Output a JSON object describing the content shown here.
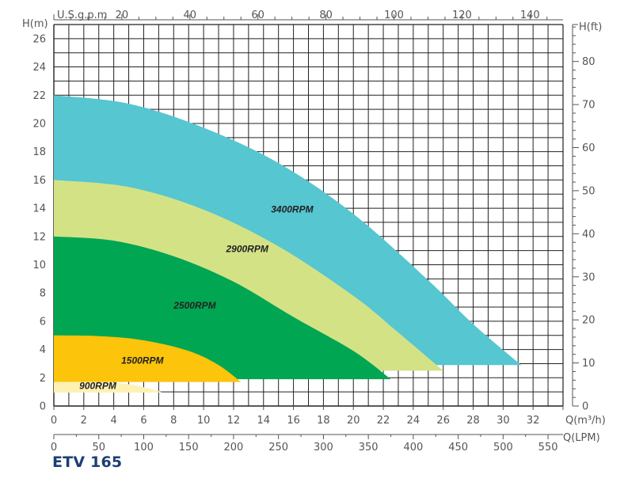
{
  "title": "ETV 165",
  "colors": {
    "grid": "#222222",
    "axis_text": "#555555",
    "title": "#1d3f73"
  },
  "chart_data": {
    "type": "area",
    "title": "ETV 165",
    "axes": {
      "left": {
        "label": "H(m)",
        "range": [
          0,
          27
        ],
        "ticks": [
          0,
          2,
          4,
          6,
          8,
          10,
          12,
          14,
          16,
          18,
          20,
          22,
          24,
          26
        ]
      },
      "right": {
        "label": "H(ft)",
        "ticks": [
          0,
          10,
          20,
          30,
          40,
          50,
          60,
          70,
          80
        ]
      },
      "bottom": {
        "label": "Q(m³/h)",
        "range": [
          0,
          34
        ],
        "ticks": [
          0,
          2,
          4,
          6,
          8,
          10,
          12,
          14,
          16,
          18,
          20,
          22,
          24,
          26,
          28,
          30,
          32
        ]
      },
      "bottom2": {
        "label": "Q(LPM)",
        "ticks": [
          0,
          50,
          100,
          150,
          200,
          250,
          300,
          350,
          400,
          450,
          500,
          550
        ]
      },
      "top": {
        "label": "U.S.g.p.m",
        "ticks": [
          20,
          40,
          60,
          80,
          100,
          120,
          140
        ]
      }
    },
    "grid": true,
    "series": [
      {
        "name": "3400RPM",
        "color": "#56c6d1",
        "upper": [
          [
            0,
            22
          ],
          [
            5,
            21.4
          ],
          [
            10,
            19.7
          ],
          [
            15,
            17.2
          ],
          [
            20,
            13.6
          ],
          [
            25,
            8.9
          ],
          [
            28,
            5.8
          ],
          [
            31.2,
            2.9
          ]
        ],
        "lower": [
          [
            0,
            2.9
          ],
          [
            31.2,
            2.9
          ]
        ],
        "label_at": [
          14.5,
          13.7
        ]
      },
      {
        "name": "2900RPM",
        "color": "#d4e286",
        "upper": [
          [
            0,
            16
          ],
          [
            5,
            15.5
          ],
          [
            10,
            13.9
          ],
          [
            15,
            11.3
          ],
          [
            20,
            7.8
          ],
          [
            23,
            5.2
          ],
          [
            26,
            2.5
          ]
        ],
        "lower": [
          [
            0,
            2.5
          ],
          [
            26,
            2.5
          ]
        ],
        "label_at": [
          11.5,
          10.9
        ]
      },
      {
        "name": "2500RPM",
        "color": "#00a652",
        "upper": [
          [
            0,
            12
          ],
          [
            4,
            11.7
          ],
          [
            8,
            10.6
          ],
          [
            12,
            8.8
          ],
          [
            16,
            6.3
          ],
          [
            20,
            3.9
          ],
          [
            22.5,
            1.9
          ]
        ],
        "lower": [
          [
            0,
            1.9
          ],
          [
            22.5,
            1.9
          ]
        ],
        "label_at": [
          8,
          6.9
        ]
      },
      {
        "name": "1500RPM",
        "color": "#fcc40b",
        "upper": [
          [
            0,
            5
          ],
          [
            3,
            4.95
          ],
          [
            6,
            4.65
          ],
          [
            9,
            3.9
          ],
          [
            11,
            2.9
          ],
          [
            12.5,
            1.7
          ]
        ],
        "lower": [
          [
            0,
            1.7
          ],
          [
            12.5,
            1.7
          ]
        ],
        "label_at": [
          4.5,
          3.0
        ]
      },
      {
        "name": "900RPM",
        "color": "#fdf1b4",
        "upper": [
          [
            0,
            1.7
          ],
          [
            3,
            1.68
          ],
          [
            5,
            1.55
          ],
          [
            6.5,
            1.2
          ],
          [
            7.3,
            0.95
          ]
        ],
        "lower": [
          [
            0,
            0.95
          ],
          [
            7.3,
            0.95
          ]
        ],
        "label_at": [
          1.7,
          1.2
        ]
      }
    ]
  }
}
